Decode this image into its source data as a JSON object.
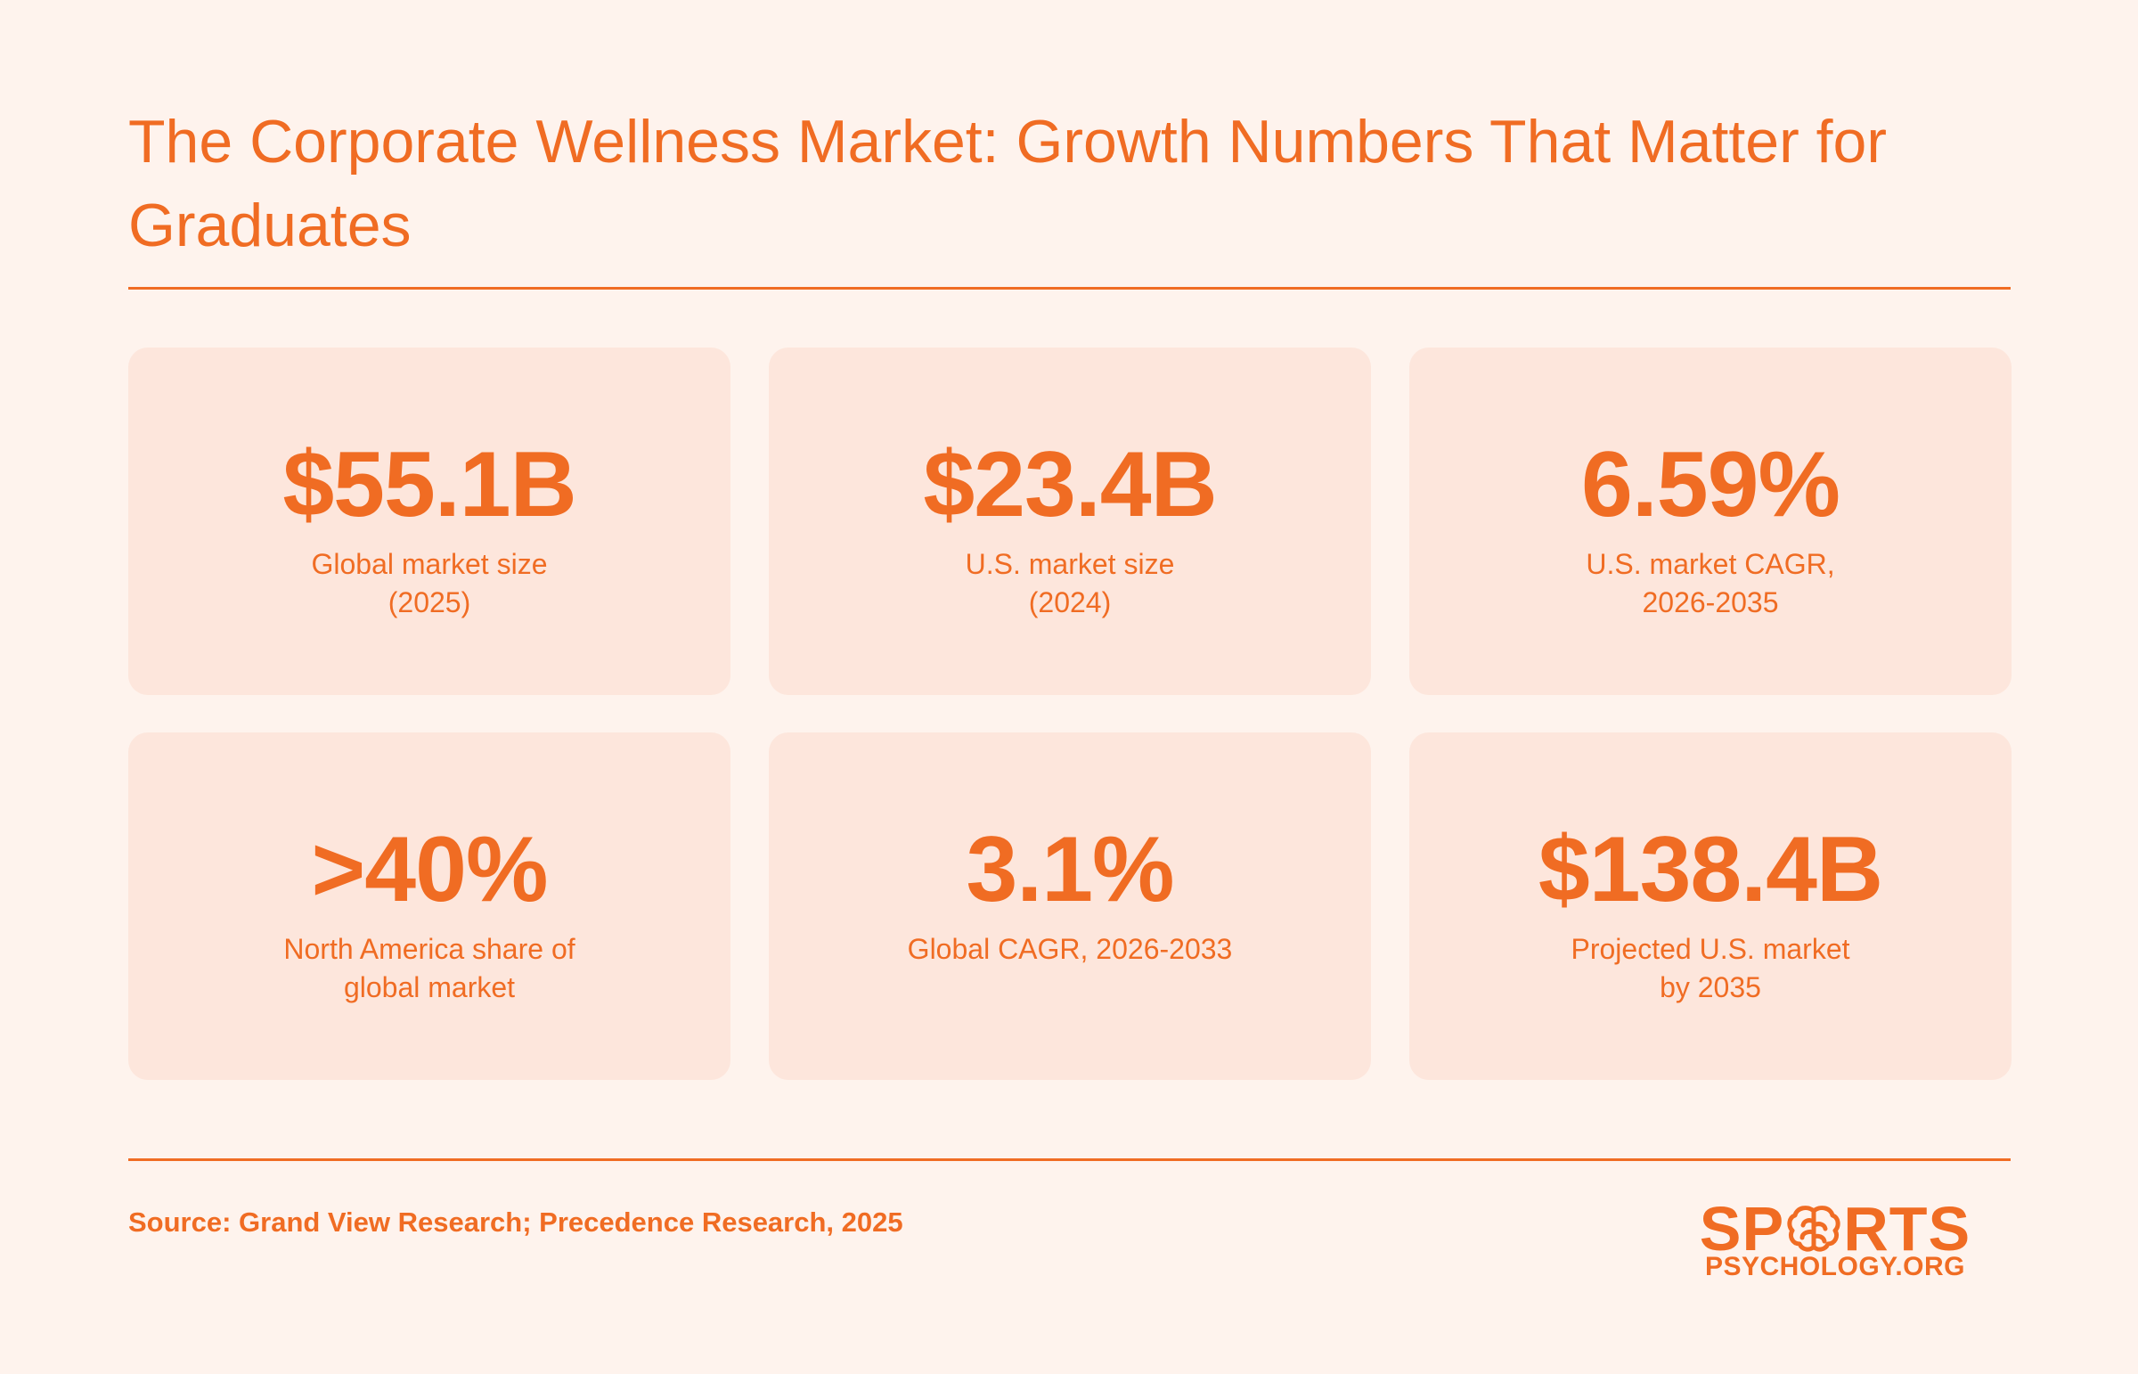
{
  "title": "The Corporate Wellness Market: Growth Numbers That Matter for Graduates",
  "stats": [
    {
      "value": "$55.1B",
      "label": "Global market size\n(2025)"
    },
    {
      "value": "$23.4B",
      "label": "U.S. market size\n(2024)"
    },
    {
      "value": "6.59%",
      "label": "U.S. market CAGR,\n2026-2035"
    },
    {
      "value": ">40%",
      "label": "North America share of\nglobal market"
    },
    {
      "value": "3.1%",
      "label": "Global CAGR, 2026-2033"
    },
    {
      "value": "$138.4B",
      "label": "Projected U.S. market\nby 2035"
    }
  ],
  "source": "Source: Grand View Research; Precedence Research, 2025",
  "logo": {
    "top_left": "SP",
    "top_right": "RTS",
    "bottom": "PSYCHOLOGY.ORG",
    "icon": "brain-icon"
  },
  "colors": {
    "accent": "#f06c23",
    "background": "#fef3ed",
    "card": "#fde6dc"
  }
}
